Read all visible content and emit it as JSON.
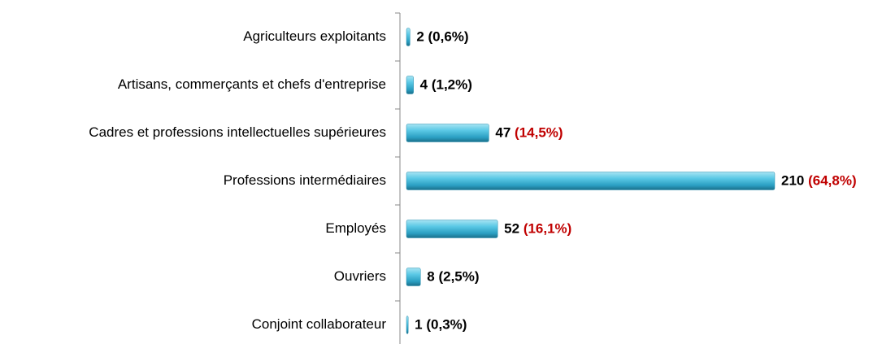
{
  "chart_data": {
    "type": "bar",
    "orientation": "horizontal",
    "categories": [
      "Agriculteurs exploitants",
      "Artisans, commerçants et chefs d'entreprise",
      "Cadres et professions intellectuelles supérieures",
      "Professions intermédiaires",
      "Employés",
      "Ouvriers",
      "Conjoint collaborateur"
    ],
    "values": [
      2,
      4,
      47,
      210,
      52,
      8,
      1
    ],
    "shares": [
      0.6,
      1.2,
      14.5,
      64.8,
      16.1,
      2.5,
      0.3
    ],
    "share_labels": [
      "(0,6%)",
      "(1,2%)",
      "(14,5%)",
      "(64,8%)",
      "(16,1%)",
      "(2,5%)",
      "(0,3%)"
    ],
    "share_colors": [
      "#000000",
      "#000000",
      "#c00000",
      "#c00000",
      "#c00000",
      "#000000",
      "#000000"
    ],
    "color": "#3fb8d8",
    "xlim": [
      0,
      210
    ]
  }
}
